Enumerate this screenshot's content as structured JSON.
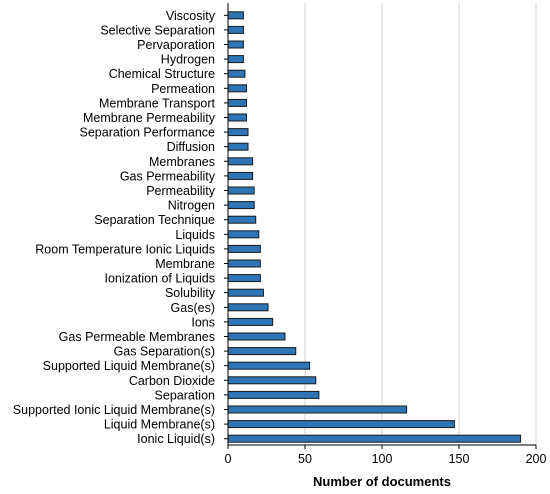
{
  "chart_data": {
    "type": "bar",
    "orientation": "horizontal",
    "categories": [
      "Viscosity",
      "Selective Separation",
      "Pervaporation",
      "Hydrogen",
      "Chemical Structure",
      "Permeation",
      "Membrane Transport",
      "Membrane Permeability",
      "Separation Performance",
      "Diffusion",
      "Membranes",
      "Gas Permeability",
      "Permeability",
      "Nitrogen",
      "Separation Technique",
      "Liquids",
      "Room Temperature Ionic Liquids",
      "Membrane",
      "Ionization of Liquids",
      "Solubility",
      "Gas(es)",
      "Ions",
      "Gas Permeable Membranes",
      "Gas Separation(s)",
      "Supported Liquid Membrane(s)",
      "Carbon Dioxide",
      "Separation",
      "Supported Ionic Liquid Membrane(s)",
      "Liquid Membrane(s)",
      "Ionic Liquid(s)"
    ],
    "values": [
      10,
      10,
      10,
      10,
      11,
      12,
      12,
      12,
      13,
      13,
      16,
      16,
      17,
      17,
      18,
      20,
      21,
      21,
      21,
      23,
      26,
      29,
      37,
      44,
      53,
      57,
      59,
      116,
      147,
      190
    ],
    "title": "",
    "xlabel": "Number of documents",
    "ylabel": "",
    "xlim": [
      0,
      200
    ],
    "xticks": [
      0,
      50,
      100,
      150,
      200
    ],
    "xtick_labels": [
      "0",
      "50",
      "100",
      "150",
      "200"
    ],
    "grid": "vertical",
    "legend": "none",
    "colors": {
      "bar_fill": "#2E75B6",
      "bar_stroke": "#1a1a1a",
      "grid": "#d0d0d0",
      "axis": "#000000"
    }
  }
}
